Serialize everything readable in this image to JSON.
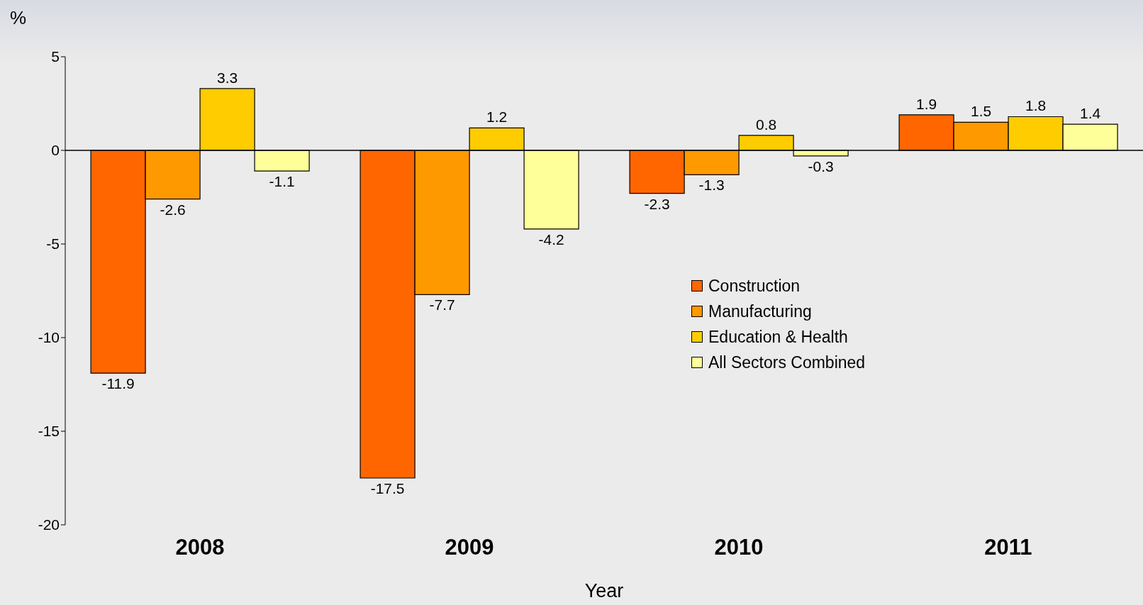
{
  "chart_data": {
    "type": "bar",
    "ylabel": "%",
    "xlabel": "Year",
    "categories": [
      "2008",
      "2009",
      "2010",
      "2011"
    ],
    "series": [
      {
        "name": "Construction",
        "color": "#ff6600",
        "values": [
          -11.9,
          -17.5,
          -2.3,
          1.9
        ]
      },
      {
        "name": "Manufacturing",
        "color": "#ff9900",
        "values": [
          -2.6,
          -7.7,
          -1.3,
          1.5
        ]
      },
      {
        "name": "Education & Health",
        "color": "#ffcc00",
        "values": [
          3.3,
          1.2,
          0.8,
          1.8
        ]
      },
      {
        "name": "All Sectors Combined",
        "color": "#ffff99",
        "values": [
          -1.1,
          -4.2,
          -0.3,
          1.4
        ]
      }
    ],
    "ylim": [
      -20,
      5
    ],
    "yticks": [
      -20,
      -15,
      -10,
      -5,
      0,
      5
    ],
    "data_labels": true,
    "legend": "right"
  }
}
